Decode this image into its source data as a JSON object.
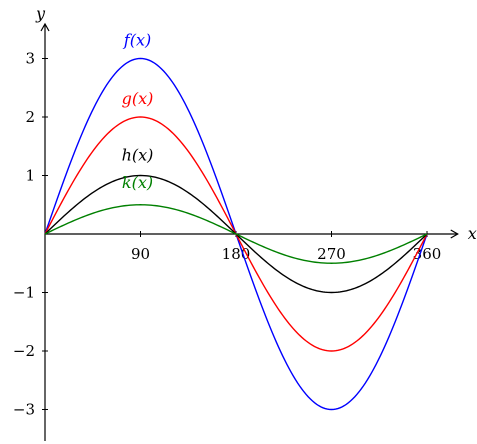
{
  "chart_data": {
    "type": "line",
    "xlabel": "x",
    "ylabel": "y",
    "xlim": [
      0,
      372
    ],
    "ylim": [
      -3.5,
      3.5
    ],
    "x_ticks": [
      90,
      180,
      270,
      360
    ],
    "y_ticks": [
      -3,
      -2,
      -1,
      1,
      2,
      3
    ],
    "tick_labels": {
      "x": [
        "90",
        "180",
        "270",
        "360"
      ],
      "y": [
        "−3",
        "−2",
        "−1",
        "1",
        "2",
        "3"
      ]
    },
    "grid": false,
    "x": [
      0,
      30,
      60,
      90,
      120,
      150,
      180,
      210,
      240,
      270,
      300,
      330,
      360
    ],
    "series": [
      {
        "name": "f(x)",
        "color": "#0000ff",
        "amplitude": 3,
        "values": [
          0,
          1.5,
          2.6,
          3,
          2.6,
          1.5,
          0,
          -1.5,
          -2.6,
          -3,
          -2.6,
          -1.5,
          0
        ]
      },
      {
        "name": "g(x)",
        "color": "#ff0000",
        "amplitude": 2,
        "values": [
          0,
          1,
          1.73,
          2,
          1.73,
          1,
          0,
          -1,
          -1.73,
          -2,
          -1.73,
          -1,
          0
        ]
      },
      {
        "name": "h(x)",
        "color": "#000000",
        "amplitude": 1,
        "values": [
          0,
          0.5,
          0.87,
          1,
          0.87,
          0.5,
          0,
          -0.5,
          -0.87,
          -1,
          -0.87,
          -0.5,
          0
        ]
      },
      {
        "name": "k(x)",
        "color": "#008000",
        "amplitude": 0.5,
        "values": [
          0,
          0.25,
          0.43,
          0.5,
          0.43,
          0.25,
          0,
          -0.25,
          -0.43,
          -0.5,
          -0.43,
          -0.25,
          0
        ]
      }
    ]
  }
}
